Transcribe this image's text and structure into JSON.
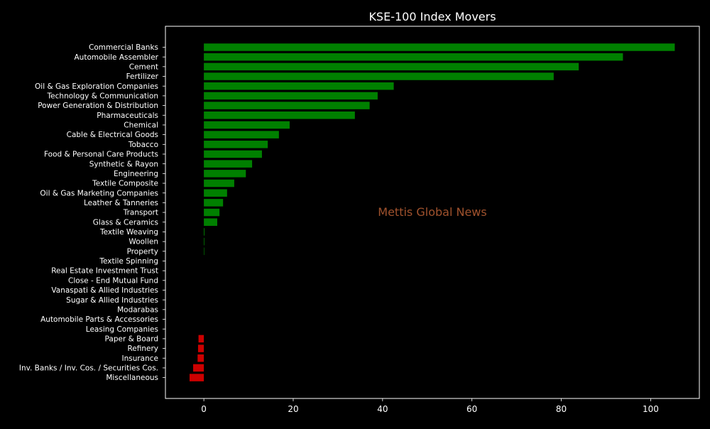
{
  "chart_data": {
    "type": "bar",
    "orientation": "horizontal",
    "title": "KSE-100 Index Movers",
    "watermark": "Mettis Global News",
    "xlabel": "",
    "ylabel": "",
    "xlim": [
      -8.6,
      110.9
    ],
    "xticks": [
      0,
      20,
      40,
      60,
      80,
      100
    ],
    "grid": false,
    "legend": "none",
    "colors": {
      "background": "#000000",
      "frame": "#ffffff",
      "text": "#ffffff",
      "positive": "#008000",
      "negative": "#cc0000",
      "watermark": "#a0522d"
    },
    "categories": [
      "Commercial Banks",
      "Automobile Assembler",
      "Cement",
      "Fertilizer",
      "Oil & Gas Exploration Companies",
      "Technology & Communication",
      "Power Generation & Distribution",
      "Pharmaceuticals",
      "Chemical",
      "Cable & Electrical Goods",
      "Tobacco",
      "Food & Personal Care Products",
      "Synthetic & Rayon",
      "Engineering",
      "Textile Composite",
      "Oil & Gas Marketing Companies",
      "Leather & Tanneries",
      "Transport",
      "Glass & Ceramics",
      "Textile Weaving",
      "Woollen",
      "Property",
      "Textile Spinning",
      "Real Estate Investment Trust",
      "Close - End Mutual Fund",
      "Vanaspati & Allied Industries",
      "Sugar & Allied Industries",
      "Modarabas",
      "Automobile Parts & Accessories",
      "Leasing Companies",
      "Paper & Board",
      "Refinery",
      "Insurance",
      "Inv. Banks / Inv. Cos. / Securities Cos.",
      "Miscellaneous"
    ],
    "values": [
      105.4,
      93.8,
      83.9,
      78.3,
      42.5,
      38.9,
      37.1,
      33.8,
      19.2,
      16.8,
      14.3,
      13.0,
      10.8,
      9.4,
      6.8,
      5.2,
      4.3,
      3.5,
      3.0,
      0.15,
      0.12,
      0.1,
      0.0,
      0.0,
      0.0,
      0.0,
      0.0,
      0.0,
      0.0,
      0.0,
      -1.2,
      -1.3,
      -1.4,
      -2.4,
      -3.2
    ]
  }
}
